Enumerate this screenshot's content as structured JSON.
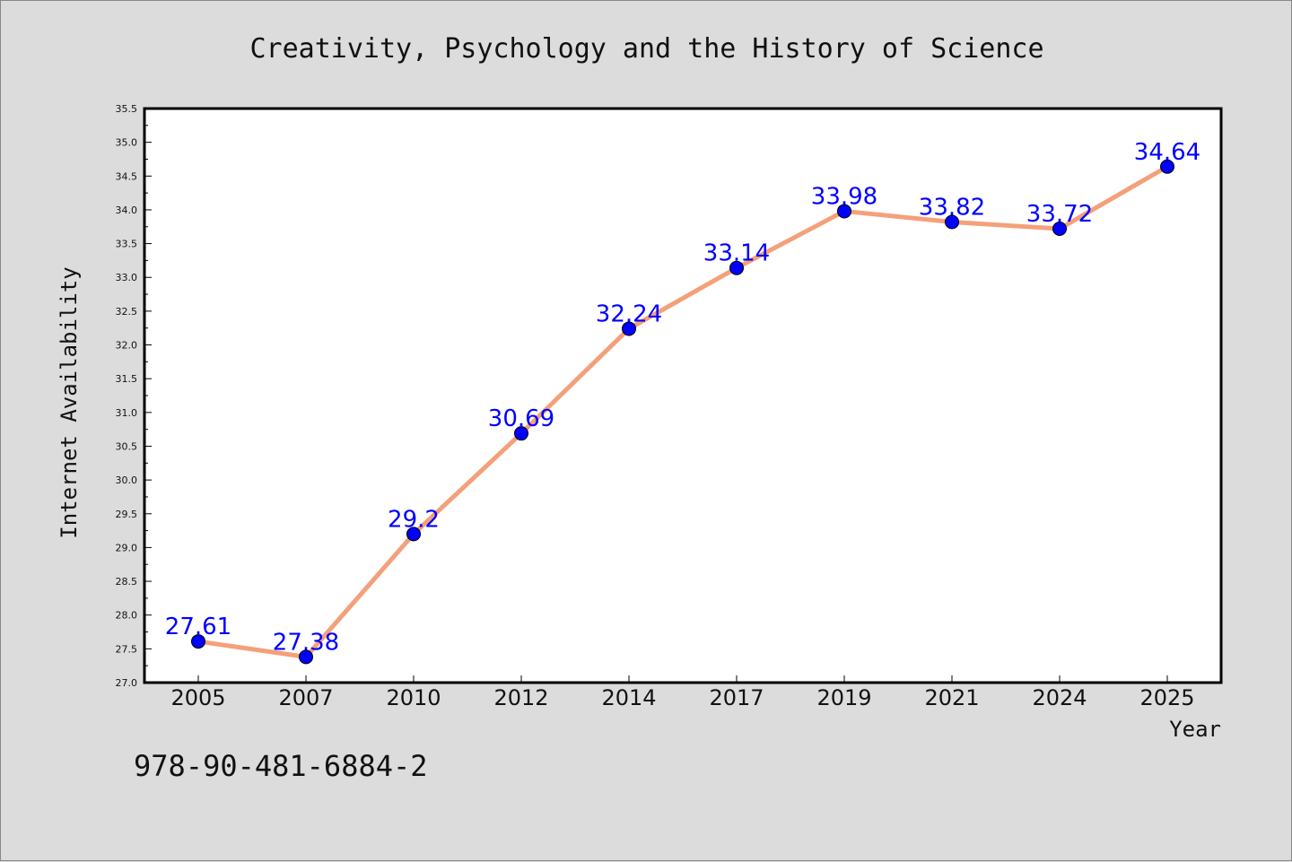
{
  "chart_data": {
    "type": "line",
    "title": "Creativity, Psychology and the History of Science",
    "xlabel": "Year",
    "ylabel": "Internet Availability",
    "categories": [
      "2005",
      "2007",
      "2010",
      "2012",
      "2014",
      "2017",
      "2019",
      "2021",
      "2024",
      "2025"
    ],
    "values": [
      27.61,
      27.38,
      29.2,
      30.69,
      32.24,
      33.14,
      33.98,
      33.82,
      33.72,
      34.64
    ],
    "value_labels": [
      "27.61",
      "27.38",
      "29.2",
      "30.69",
      "32.24",
      "33.14",
      "33.98",
      "33.82",
      "33.72",
      "34.64"
    ],
    "ylim": [
      27.0,
      35.5
    ],
    "yticks": [
      "27.0",
      "27.5",
      "28.0",
      "28.5",
      "29.0",
      "29.5",
      "30.0",
      "30.5",
      "31.0",
      "31.5",
      "32.0",
      "32.5",
      "33.0",
      "33.5",
      "34.0",
      "34.5",
      "35.0",
      "35.5"
    ],
    "grid": false,
    "legend": "none",
    "colors": {
      "line": "#f4a07a",
      "marker": "#0000ff",
      "label": "#0000ff"
    }
  },
  "footer": {
    "isbn": "978-90-481-6884-2"
  }
}
